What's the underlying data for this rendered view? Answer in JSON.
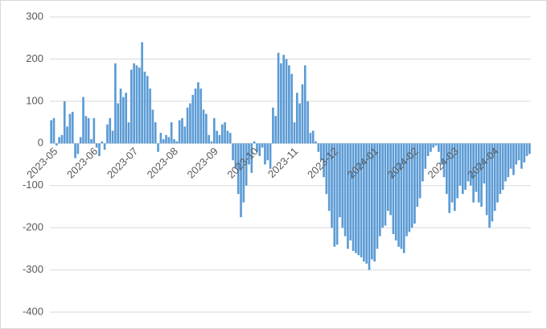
{
  "chart_data": {
    "type": "bar",
    "color": "#5b9bd5",
    "grid": true,
    "ylim": [
      -400,
      300
    ],
    "yticks": [
      -400,
      -300,
      -200,
      -100,
      0,
      100,
      200,
      300
    ],
    "categories": [
      "2023-05",
      null,
      null,
      null,
      null,
      null,
      null,
      null,
      null,
      null,
      null,
      null,
      null,
      null,
      null,
      "2023-06",
      null,
      null,
      null,
      null,
      null,
      null,
      null,
      null,
      null,
      null,
      null,
      null,
      null,
      null,
      "2023-07",
      null,
      null,
      null,
      null,
      null,
      null,
      null,
      null,
      null,
      null,
      null,
      null,
      null,
      null,
      "2023-08",
      null,
      null,
      null,
      null,
      null,
      null,
      null,
      null,
      null,
      null,
      null,
      null,
      null,
      null,
      "2023-09",
      null,
      null,
      null,
      null,
      null,
      null,
      null,
      null,
      null,
      null,
      null,
      null,
      null,
      null,
      "2023-10",
      null,
      null,
      null,
      null,
      null,
      null,
      null,
      null,
      null,
      null,
      null,
      null,
      null,
      null,
      "2023-11",
      null,
      null,
      null,
      null,
      null,
      null,
      null,
      null,
      null,
      null,
      null,
      null,
      null,
      null,
      "2023-12",
      null,
      null,
      null,
      null,
      null,
      null,
      null,
      null,
      null,
      null,
      null,
      null,
      null,
      null,
      "2024-01",
      null,
      null,
      null,
      null,
      null,
      null,
      null,
      null,
      null,
      null,
      null,
      null,
      null,
      null,
      "2024-02",
      null,
      null,
      null,
      null,
      null,
      null,
      null,
      null,
      null,
      null,
      null,
      null,
      null,
      null,
      "2024-03",
      null,
      null,
      null,
      null,
      null,
      null,
      null,
      null,
      null,
      null,
      null,
      null,
      null,
      null,
      "2024-04",
      null,
      null,
      null,
      null,
      null,
      null,
      null,
      null,
      null,
      null,
      null,
      null,
      null,
      null
    ],
    "values": [
      55,
      60,
      -5,
      15,
      20,
      100,
      40,
      70,
      75,
      -35,
      -25,
      15,
      110,
      65,
      60,
      10,
      60,
      -10,
      -30,
      5,
      -15,
      45,
      60,
      30,
      190,
      95,
      130,
      110,
      120,
      50,
      175,
      190,
      185,
      180,
      240,
      170,
      160,
      130,
      80,
      50,
      -20,
      25,
      10,
      20,
      15,
      50,
      10,
      5,
      55,
      60,
      40,
      85,
      95,
      115,
      130,
      145,
      130,
      80,
      70,
      20,
      5,
      60,
      30,
      20,
      45,
      50,
      30,
      25,
      -40,
      -60,
      -120,
      -175,
      -140,
      -100,
      -50,
      -70,
      5,
      -20,
      -30,
      -10,
      -50,
      -40,
      -60,
      85,
      65,
      215,
      190,
      210,
      200,
      185,
      165,
      50,
      120,
      95,
      140,
      185,
      100,
      25,
      30,
      5,
      -20,
      -40,
      -80,
      -120,
      -160,
      -200,
      -245,
      -240,
      -175,
      -200,
      -220,
      -250,
      -230,
      -255,
      -260,
      -265,
      -270,
      -280,
      -285,
      -300,
      -275,
      -280,
      -250,
      -220,
      -200,
      -195,
      -160,
      -170,
      -215,
      -230,
      -245,
      -250,
      -260,
      -220,
      -210,
      -200,
      -190,
      -150,
      -130,
      -90,
      -60,
      -30,
      -20,
      -10,
      -5,
      -20,
      -50,
      -80,
      -120,
      -165,
      -140,
      -160,
      -130,
      -100,
      -120,
      -110,
      -90,
      -100,
      -140,
      -115,
      -140,
      -150,
      -95,
      -170,
      -200,
      -185,
      -160,
      -140,
      -120,
      -110,
      -90,
      -80,
      -60,
      -75,
      -50,
      -40,
      -60,
      -45,
      -30,
      -25
    ]
  }
}
